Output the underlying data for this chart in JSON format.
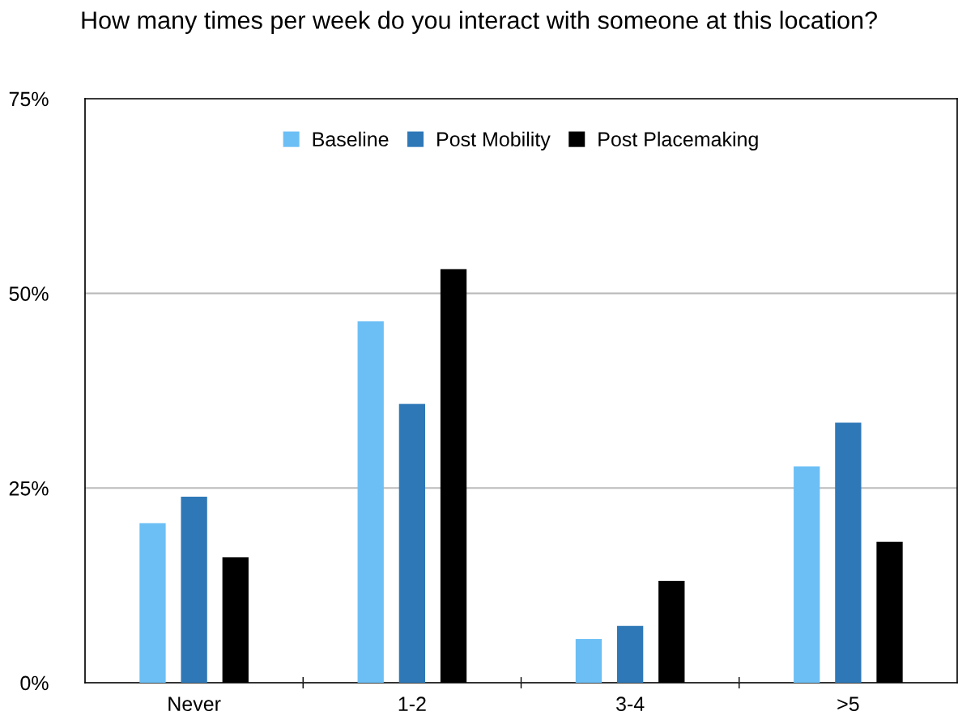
{
  "chart_data": {
    "type": "bar",
    "title": "How many times per week do you interact with someone at this location?",
    "categories": [
      "Never",
      "1-2",
      "3-4",
      ">5"
    ],
    "series": [
      {
        "name": "Baseline",
        "color": "#6cbff5",
        "values": [
          20.5,
          46.4,
          5.6,
          27.8
        ]
      },
      {
        "name": "Post Mobility",
        "color": "#2e78b7",
        "values": [
          23.9,
          35.8,
          7.3,
          33.4
        ]
      },
      {
        "name": "Post Placemaking",
        "color": "#000000",
        "values": [
          16.1,
          53.1,
          13.1,
          18.1
        ]
      }
    ],
    "ylim": [
      0,
      75
    ],
    "yticks": [
      {
        "value": 0,
        "label": "0%"
      },
      {
        "value": 25,
        "label": "25%"
      },
      {
        "value": 50,
        "label": "50%"
      },
      {
        "value": 75,
        "label": "75%"
      }
    ],
    "grid": "y",
    "legend": "top"
  }
}
